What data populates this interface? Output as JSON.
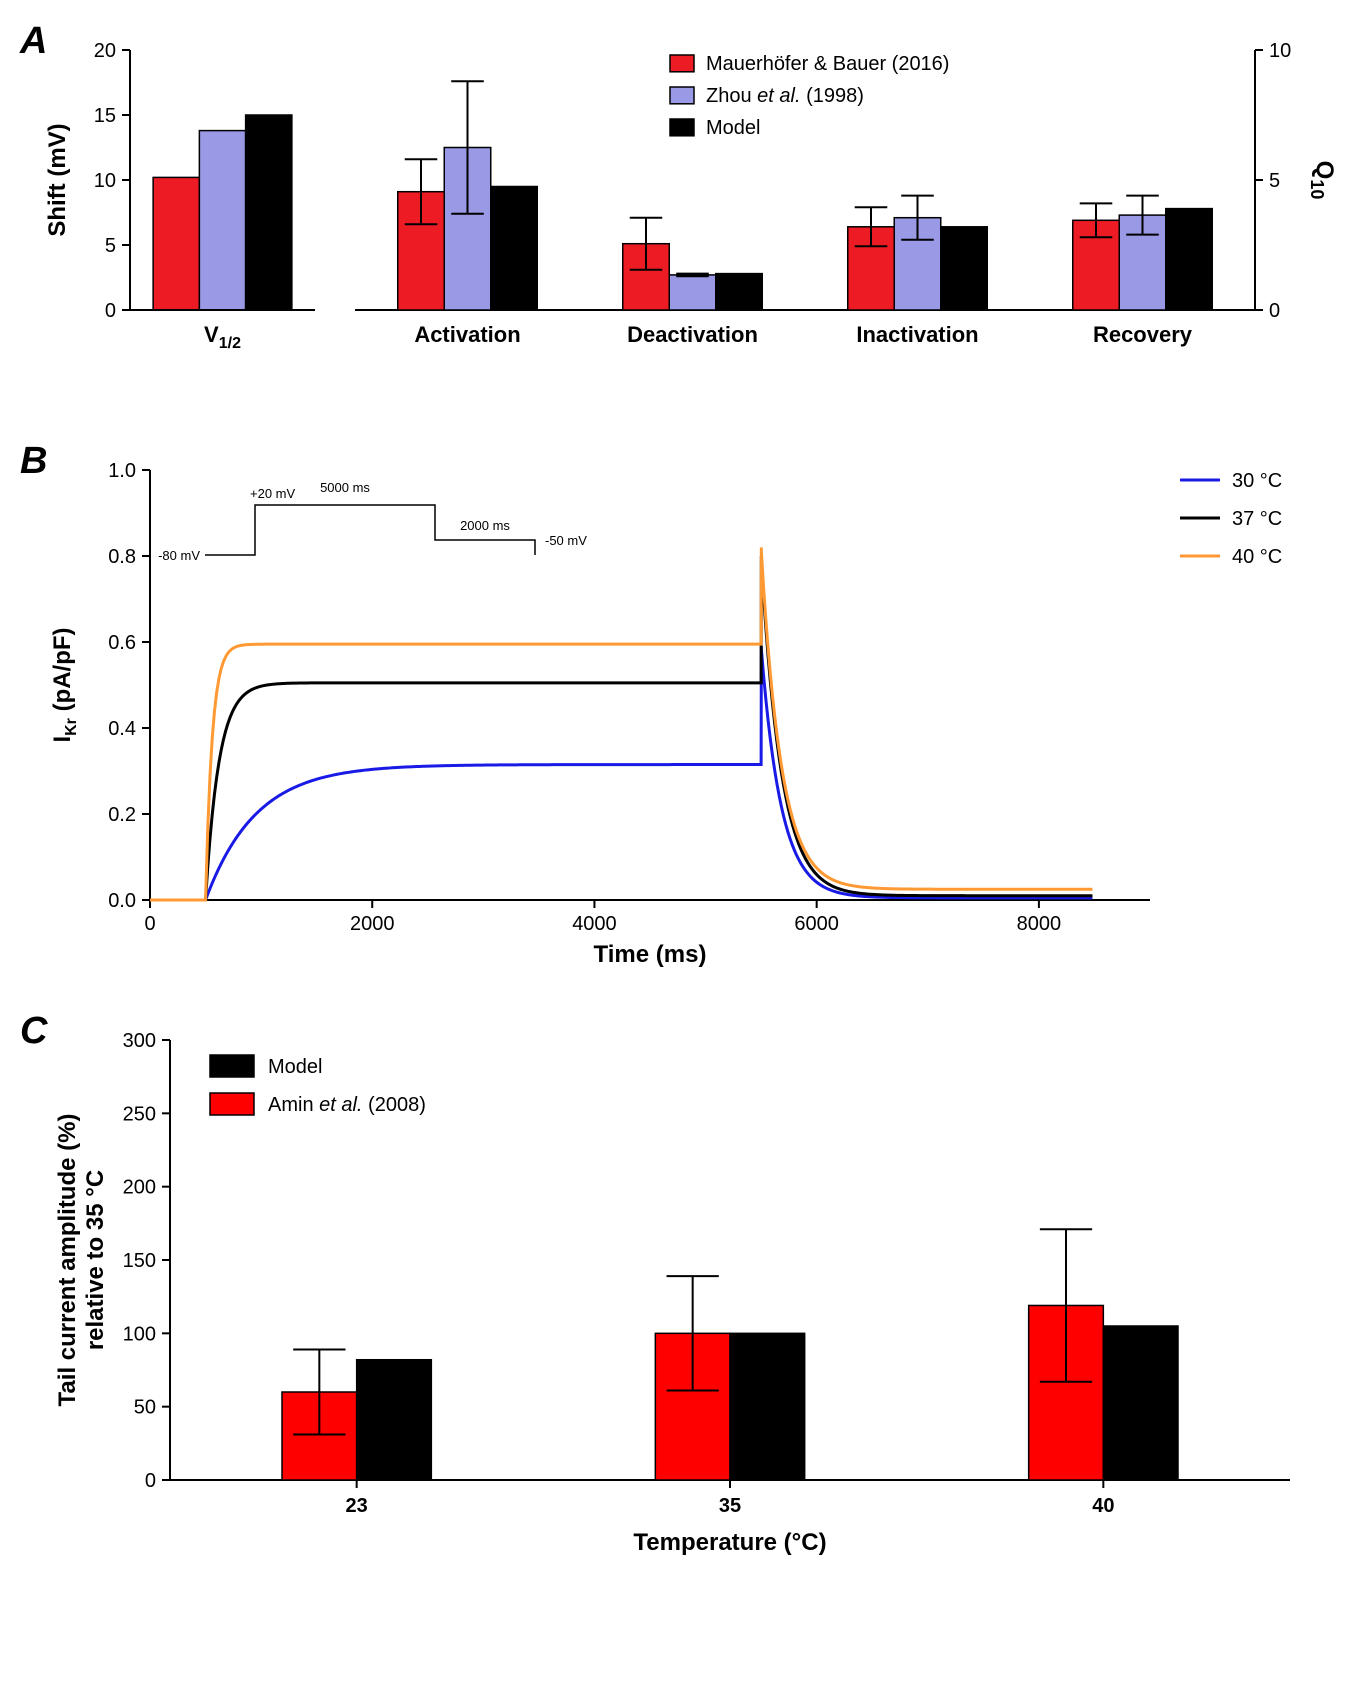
{
  "panelA": {
    "label": "A",
    "left_axis": {
      "title": "Shift (mV)",
      "ticks": [
        0,
        5,
        10,
        15,
        20
      ],
      "ylim": [
        0,
        20
      ]
    },
    "right_axis": {
      "title": "Q",
      "title_sub": "10",
      "ticks": [
        0,
        5,
        10
      ],
      "ylim": [
        0,
        10
      ]
    },
    "colors": {
      "mauer": "#ed1c24",
      "zhou": "#9999e6",
      "model": "#000000",
      "bar_stroke": "#000000"
    },
    "legend": [
      {
        "key": "mauer",
        "label": "Mauerhöfer & Bauer (2016)"
      },
      {
        "key": "zhou",
        "label_html": "Zhou <tspan font-style='italic'>et al.</tspan> (1998)"
      },
      {
        "key": "model",
        "label": "Model"
      }
    ],
    "left_group": {
      "category": "V",
      "category_sub": "1/2",
      "bars": [
        10.2,
        13.8,
        15.0
      ]
    },
    "right_groups": [
      {
        "category": "Activation",
        "bars": [
          4.55,
          6.25,
          4.75
        ],
        "err": [
          1.25,
          2.55,
          null
        ]
      },
      {
        "category": "Deactivation",
        "bars": [
          2.55,
          1.35,
          1.4
        ],
        "err": [
          1.0,
          0.05,
          null
        ]
      },
      {
        "category": "Inactivation",
        "bars": [
          3.2,
          3.55,
          3.2
        ],
        "err": [
          0.75,
          0.85,
          null
        ]
      },
      {
        "category": "Recovery",
        "bars": [
          3.45,
          3.65,
          3.9
        ],
        "err": [
          0.65,
          0.75,
          null
        ]
      }
    ],
    "bar_width": 0.28,
    "font_sizes": {
      "axis_title": 24,
      "tick": 20,
      "legend": 20,
      "category": 22
    }
  },
  "panelB": {
    "label": "B",
    "x_axis": {
      "title": "Time (ms)",
      "ticks": [
        0,
        2000,
        4000,
        6000,
        8000
      ],
      "xlim": [
        0,
        9000
      ]
    },
    "y_axis": {
      "title": "I",
      "title_sub": "Kr",
      "title_suffix": " (pA/pF)",
      "ticks": [
        0.0,
        0.2,
        0.4,
        0.6,
        0.8,
        1.0
      ],
      "ylim": [
        0,
        1.0
      ]
    },
    "colors": {
      "t30": "#1a1ae6",
      "t37": "#000000",
      "t40": "#ff9933",
      "axis": "#000000"
    },
    "legend": [
      {
        "key": "t30",
        "label": "30 °C"
      },
      {
        "key": "t37",
        "label": "37 °C"
      },
      {
        "key": "t40",
        "label": "40 °C"
      }
    ],
    "inset": {
      "labels": {
        "v_low": "-80 mV",
        "v_high": "+20 mV",
        "v_tail": "-50 mV",
        "t1": "5000 ms",
        "t2": "2000 ms"
      }
    },
    "traces": {
      "step_start": 500,
      "step_end": 5500,
      "tail_end": 8500,
      "t30": {
        "plateau": 0.315,
        "tau_rise": 450,
        "spike": 0.59,
        "tail_baseline": 0.005
      },
      "t37": {
        "plateau": 0.505,
        "tau_rise": 120,
        "spike": 0.8,
        "tail_baseline": 0.01
      },
      "t40": {
        "plateau": 0.595,
        "tau_rise": 60,
        "spike": 0.82,
        "tail_baseline": 0.025
      }
    },
    "line_width": 3,
    "font_sizes": {
      "axis_title": 24,
      "tick": 20,
      "legend": 20
    }
  },
  "panelC": {
    "label": "C",
    "x_axis": {
      "title": "Temperature (°C)",
      "categories": [
        "23",
        "35",
        "40"
      ]
    },
    "y_axis": {
      "title_line1": "Tail current amplitude (%)",
      "title_line2": "relative to 35 °C",
      "ticks": [
        0,
        50,
        100,
        150,
        200,
        250,
        300
      ],
      "ylim": [
        0,
        300
      ]
    },
    "colors": {
      "amin": "#ff0000",
      "model": "#000000"
    },
    "legend": [
      {
        "key": "model",
        "label": "Model"
      },
      {
        "key": "amin",
        "label_html": "Amin <tspan font-style='italic'>et al.</tspan> (2008)"
      }
    ],
    "groups": [
      {
        "bars": [
          60,
          82
        ],
        "err": [
          29,
          null
        ]
      },
      {
        "bars": [
          100,
          100
        ],
        "err": [
          39,
          null
        ]
      },
      {
        "bars": [
          119,
          105
        ],
        "err": [
          52,
          null
        ]
      }
    ],
    "bar_width": 0.36,
    "font_sizes": {
      "axis_title": 24,
      "tick": 20,
      "legend": 22,
      "category": 22
    }
  }
}
